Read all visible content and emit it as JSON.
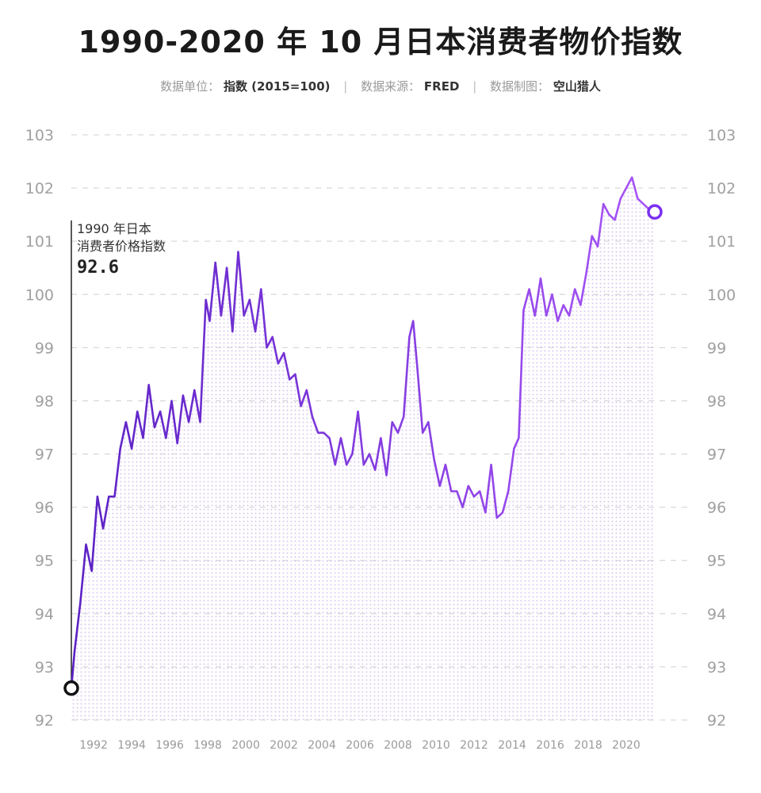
{
  "title": "1990-2020 年 10 月日本消费者物价指数",
  "meta": {
    "unit_label": "数据单位：",
    "unit_value": "指数 (2015=100)",
    "source_label": "数据来源：",
    "source_value": "FRED",
    "maker_label": "数据制图：",
    "maker_value": "空山猎人",
    "separator": "|"
  },
  "annotation": {
    "line1": "1990 年日本",
    "line2": "消费者价格指数",
    "value": "92.6"
  },
  "colors": {
    "line_start": "#5b21c4",
    "line_end": "#a855f7",
    "fill_dots": "#d9c7ef",
    "grid": "#d0d0d0",
    "marker_start": "#111111",
    "marker_end": "#7b2ff0"
  },
  "chart_data": {
    "type": "line",
    "title": "1990-2020 年 10 月日本消费者物价指数",
    "ylim": [
      92,
      103
    ],
    "xlim": [
      1990.83,
      2021.5
    ],
    "yticks": [
      92,
      93,
      94,
      95,
      96,
      97,
      98,
      99,
      100,
      101,
      102,
      103
    ],
    "xticks": [
      "1992",
      "1994",
      "1996",
      "1998",
      "2000",
      "2002",
      "2004",
      "2006",
      "2008",
      "2010",
      "2012",
      "2014",
      "2016",
      "2018",
      "2020"
    ],
    "grid": true,
    "series": [
      {
        "x": [
          1990.83,
          1991.0,
          1991.3,
          1991.6,
          1991.9,
          1992.2,
          1992.5,
          1992.8,
          1993.1,
          1993.4,
          1993.7,
          1994.0,
          1994.3,
          1994.6,
          1994.9,
          1995.2,
          1995.5,
          1995.8,
          1996.1,
          1996.4,
          1996.7,
          1997.0,
          1997.3,
          1997.6,
          1997.9,
          1998.1,
          1998.4,
          1998.7,
          1999.0,
          1999.3,
          1999.6,
          1999.9,
          2000.2,
          2000.5,
          2000.8,
          2001.1,
          2001.4,
          2001.7,
          2002.0,
          2002.3,
          2002.6,
          2002.9,
          2003.2,
          2003.5,
          2003.8,
          2004.1,
          2004.4,
          2004.7,
          2005.0,
          2005.3,
          2005.6,
          2005.9,
          2006.2,
          2006.5,
          2006.8,
          2007.1,
          2007.4,
          2007.7,
          2008.0,
          2008.3,
          2008.6,
          2008.8,
          2009.0,
          2009.3,
          2009.6,
          2009.9,
          2010.2,
          2010.5,
          2010.8,
          2011.1,
          2011.4,
          2011.7,
          2012.0,
          2012.3,
          2012.6,
          2012.9,
          2013.2,
          2013.5,
          2013.8,
          2014.1,
          2014.35,
          2014.6,
          2014.9,
          2015.2,
          2015.5,
          2015.8,
          2016.1,
          2016.4,
          2016.7,
          2017.0,
          2017.3,
          2017.6,
          2017.9,
          2018.2,
          2018.5,
          2018.8,
          2019.1,
          2019.4,
          2019.7,
          2020.0,
          2020.3,
          2020.6,
          2020.9,
          2021.2,
          2021.5
        ],
        "values": [
          92.6,
          93.3,
          94.2,
          95.3,
          94.8,
          96.2,
          95.6,
          96.2,
          96.2,
          97.1,
          97.6,
          97.1,
          97.8,
          97.3,
          98.3,
          97.5,
          97.8,
          97.3,
          98.0,
          97.2,
          98.1,
          97.6,
          98.2,
          97.6,
          99.9,
          99.5,
          100.6,
          99.6,
          100.5,
          99.3,
          100.8,
          99.6,
          99.9,
          99.3,
          100.1,
          99.0,
          99.2,
          98.7,
          98.9,
          98.4,
          98.5,
          97.9,
          98.2,
          97.7,
          97.4,
          97.4,
          97.3,
          96.8,
          97.3,
          96.8,
          97.0,
          97.8,
          96.8,
          97.0,
          96.7,
          97.3,
          96.6,
          97.6,
          97.4,
          97.7,
          99.2,
          99.5,
          98.7,
          97.4,
          97.6,
          96.9,
          96.4,
          96.8,
          96.3,
          96.3,
          96.0,
          96.4,
          96.2,
          96.3,
          95.9,
          96.8,
          95.8,
          95.9,
          96.3,
          97.1,
          97.3,
          99.7,
          100.1,
          99.6,
          100.3,
          99.6,
          100.0,
          99.5,
          99.8,
          99.6,
          100.1,
          99.8,
          100.4,
          101.1,
          100.9,
          101.7,
          101.5,
          101.4,
          101.8,
          102.0,
          102.2,
          101.8,
          101.7,
          101.6,
          101.55
        ]
      }
    ]
  }
}
